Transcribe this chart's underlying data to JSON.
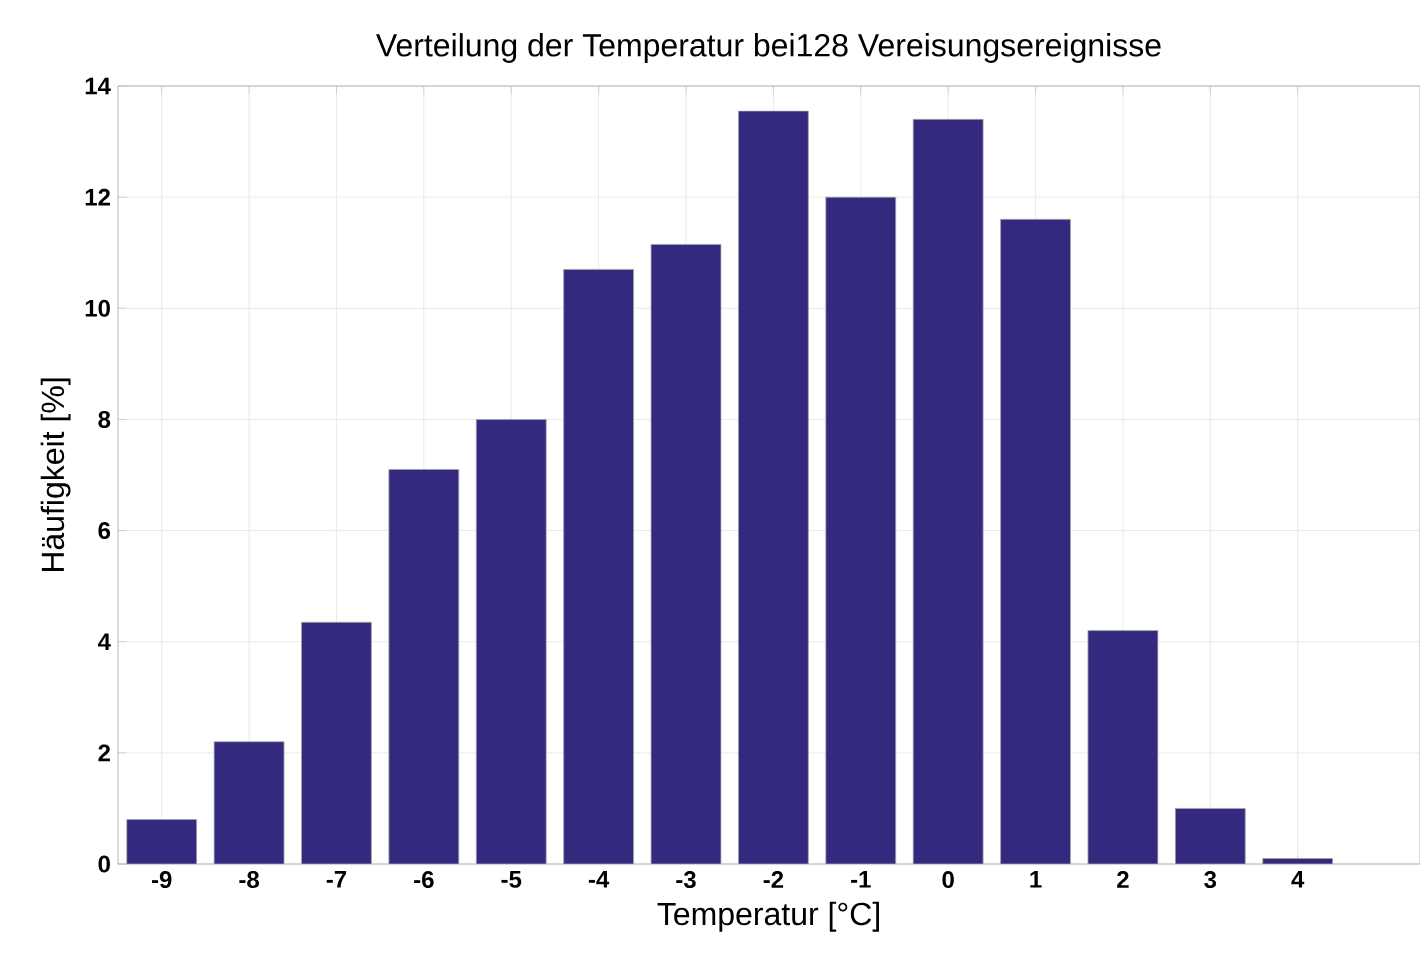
{
  "chart_data": {
    "type": "bar",
    "title": "Verteilung der Temperatur bei128 Vereisungsereignisse",
    "xlabel": "Temperatur [°C]",
    "ylabel": "Häufigkeit [%]",
    "x": [
      -9,
      -8,
      -7,
      -6,
      -5,
      -4,
      -3,
      -2,
      -1,
      0,
      1,
      2,
      3,
      4
    ],
    "values": [
      0.8,
      2.2,
      4.35,
      7.1,
      8.0,
      10.7,
      11.15,
      13.55,
      12.0,
      13.4,
      11.6,
      4.2,
      1.0,
      0.1
    ],
    "color": "#332a80",
    "xlim": [
      -9.5,
      5.4
    ],
    "xticks": [
      -9,
      -8,
      -7,
      -6,
      -5,
      -4,
      -3,
      -2,
      -1,
      0,
      1,
      2,
      3,
      4
    ],
    "ylim": [
      0,
      14
    ],
    "yticks": [
      0,
      2,
      4,
      6,
      8,
      10,
      12,
      14
    ],
    "grid": true
  }
}
